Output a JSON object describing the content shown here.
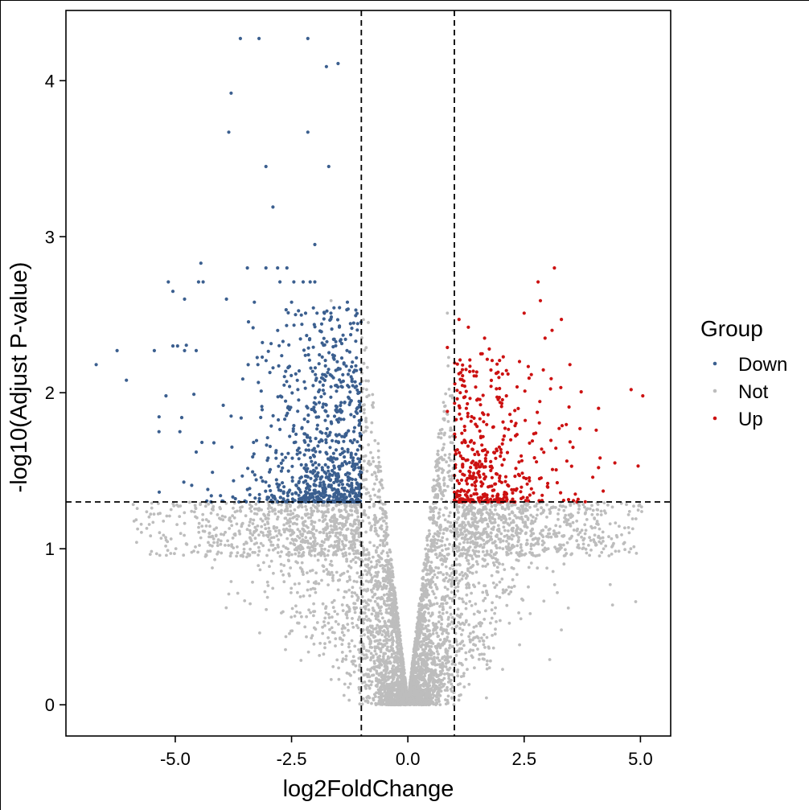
{
  "chart_data": {
    "type": "scatter",
    "title": "",
    "xlabel": "log2FoldChange",
    "ylabel": "-log10(Adjust P-value)",
    "xlim": [
      -7.35,
      5.65
    ],
    "ylim": [
      -0.2,
      4.45
    ],
    "x_ticks": [
      -5.0,
      -2.5,
      0.0,
      2.5,
      5.0
    ],
    "x_tick_labels": [
      "-5.0",
      "-2.5",
      "0.0",
      "2.5",
      "5.0"
    ],
    "y_ticks": [
      0,
      1,
      2,
      3,
      4
    ],
    "y_tick_labels": [
      "0",
      "1",
      "2",
      "3",
      "4"
    ],
    "grid": false,
    "legend": {
      "title": "Group",
      "placement": "right",
      "entries": [
        {
          "label": "Down",
          "color": "#3b5f8f"
        },
        {
          "label": "Not",
          "color": "#bdbdbd"
        },
        {
          "label": "Up",
          "color": "#cc1111"
        }
      ]
    },
    "thresholds": {
      "fold_change": [
        -1,
        1
      ],
      "neg_log10_p": 1.3,
      "line_style": "dashed"
    },
    "series": [
      {
        "name": "Down",
        "color": "#3b5f8f",
        "points": [
          [
            -3.6,
            4.27
          ],
          [
            -3.2,
            4.27
          ],
          [
            -2.15,
            4.27
          ],
          [
            -1.5,
            4.11
          ],
          [
            -1.75,
            4.09
          ],
          [
            -3.8,
            3.92
          ],
          [
            -3.85,
            3.67
          ],
          [
            -2.15,
            3.67
          ],
          [
            -3.05,
            3.45
          ],
          [
            -1.7,
            3.45
          ],
          [
            -2.9,
            3.19
          ],
          [
            -2.0,
            2.95
          ],
          [
            -4.45,
            2.83
          ],
          [
            -3.45,
            2.8
          ],
          [
            -3.05,
            2.8
          ],
          [
            -2.8,
            2.8
          ],
          [
            -2.6,
            2.8
          ],
          [
            -5.15,
            2.71
          ],
          [
            -4.5,
            2.71
          ],
          [
            -4.4,
            2.71
          ],
          [
            -2.75,
            2.71
          ],
          [
            -2.45,
            2.71
          ],
          [
            -2.25,
            2.71
          ],
          [
            -2.1,
            2.71
          ],
          [
            -2.0,
            2.71
          ],
          [
            -5.05,
            2.65
          ],
          [
            -3.9,
            2.6
          ],
          [
            -4.8,
            2.6
          ],
          [
            -3.3,
            2.58
          ],
          [
            -2.5,
            2.58
          ],
          [
            -1.3,
            2.58
          ],
          [
            -6.7,
            2.18
          ],
          [
            -6.25,
            2.27
          ],
          [
            -6.05,
            2.08
          ],
          [
            -5.45,
            2.27
          ],
          [
            -5.05,
            2.3
          ],
          [
            -4.95,
            2.3
          ],
          [
            -4.8,
            2.27
          ],
          [
            -4.55,
            2.27
          ],
          [
            -5.2,
            1.98
          ],
          [
            -4.6,
            1.99
          ],
          [
            -5.35,
            1.75
          ],
          [
            -4.9,
            1.75
          ],
          [
            -4.55,
            1.62
          ],
          [
            -4.3,
            1.38
          ],
          [
            -4.2,
            1.49
          ],
          [
            -3.8,
            1.85
          ]
        ]
      },
      {
        "name": "Up",
        "color": "#cc1111",
        "points": [
          [
            3.15,
            2.8
          ],
          [
            2.8,
            2.71
          ],
          [
            2.85,
            2.59
          ],
          [
            2.5,
            2.51
          ],
          [
            3.3,
            2.47
          ],
          [
            3.1,
            2.4
          ],
          [
            2.95,
            2.35
          ],
          [
            5.05,
            1.98
          ],
          [
            4.8,
            2.02
          ],
          [
            4.45,
            1.55
          ],
          [
            4.95,
            1.53
          ],
          [
            4.1,
            1.9
          ],
          [
            4.1,
            1.52
          ],
          [
            4.2,
            1.37
          ],
          [
            4.05,
            1.76
          ],
          [
            3.7,
            1.77
          ],
          [
            3.55,
            1.65
          ],
          [
            3.6,
            1.35
          ],
          [
            1.1,
            2.47
          ],
          [
            1.3,
            2.42
          ],
          [
            1.65,
            2.35
          ],
          [
            1.75,
            2.28
          ],
          [
            2.05,
            2.23
          ],
          [
            2.4,
            2.2
          ],
          [
            0.85,
            2.29
          ],
          [
            0.85,
            1.88
          ]
        ]
      }
    ],
    "not_group": {
      "name": "Not",
      "color": "#bdbdbd",
      "description_points": [
        [
          4.35,
          0.77
        ],
        [
          4.4,
          0.64
        ],
        [
          4.3,
          1.28
        ],
        [
          3.5,
          1.2
        ],
        [
          3.45,
          0.62
        ],
        [
          3.3,
          0.48
        ],
        [
          3.05,
          0.29
        ],
        [
          -4.2,
          1.08
        ],
        [
          -4.15,
          0.93
        ],
        [
          -3.8,
          0.79
        ],
        [
          -3.85,
          0.71
        ],
        [
          -4.65,
          1.24
        ],
        [
          -1.65,
          2.59
        ],
        [
          -0.85,
          2.45
        ],
        [
          0.85,
          2.51
        ]
      ]
    }
  }
}
